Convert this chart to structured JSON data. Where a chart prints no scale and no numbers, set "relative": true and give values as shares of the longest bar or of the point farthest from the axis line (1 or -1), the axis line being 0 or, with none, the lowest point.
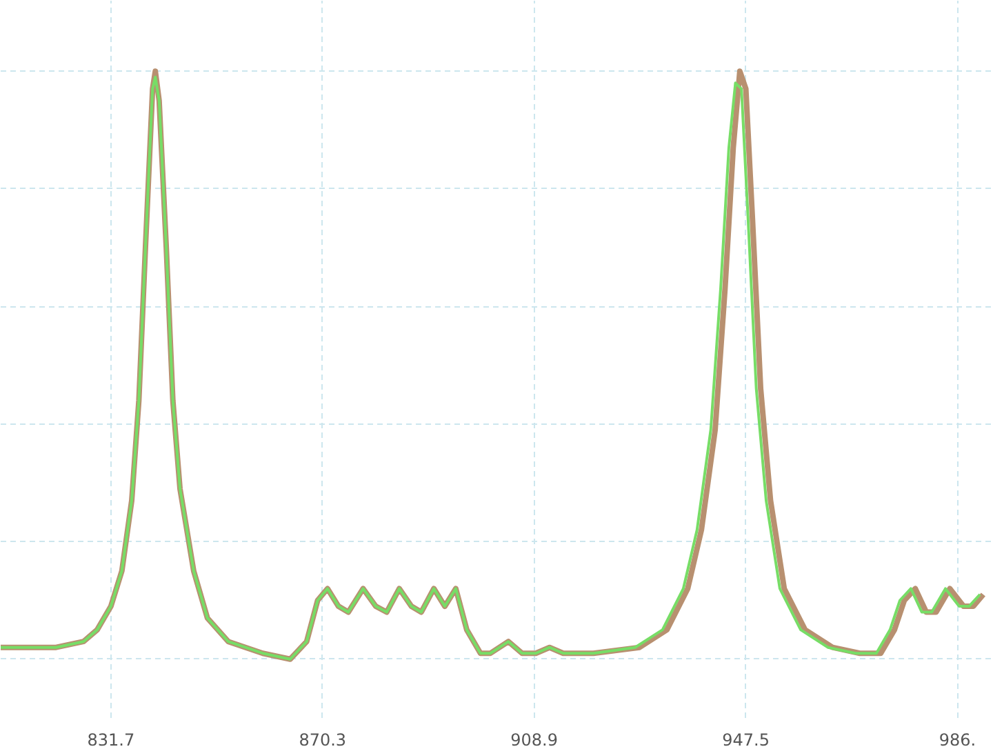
{
  "chart_data": {
    "type": "line",
    "relative": true,
    "grid": true,
    "marker": "none",
    "line_style": "solid",
    "xlim": [
      811.6,
      992.7
    ],
    "xticks": [
      831.7,
      870.3,
      908.9,
      947.5,
      {
        "value": 986.1,
        "label": "986."
      }
    ],
    "series": [
      {
        "color": "#b89070",
        "x": [
          811.6,
          821.7,
          826.7,
          829.2,
          831.7,
          833.7,
          835.5,
          836.8,
          838.0,
          839.3,
          839.8,
          840.5,
          841.8,
          843.0,
          844.3,
          846.8,
          849.3,
          853.1,
          859.4,
          864.4,
          867.4,
          869.4,
          871.2,
          873.2,
          875.0,
          877.7,
          880.0,
          882.0,
          884.3,
          886.5,
          888.3,
          890.6,
          892.6,
          894.6,
          896.6,
          899.1,
          900.9,
          904.2,
          906.7,
          909.2,
          911.7,
          914.2,
          919.7,
          928.1,
          933.1,
          936.9,
          939.4,
          941.9,
          943.7,
          945.2,
          946.4,
          947.5,
          948.7,
          950.2,
          952.0,
          954.5,
          958.3,
          963.3,
          968.3,
          972.1,
          974.6,
          976.4,
          978.4,
          980.4,
          982.2,
          984.7,
          987.2,
          989.0,
          990.8
        ],
        "values": [
          0.02,
          0.02,
          0.03,
          0.05,
          0.09,
          0.15,
          0.27,
          0.44,
          0.7,
          0.97,
          1.0,
          0.95,
          0.7,
          0.44,
          0.29,
          0.15,
          0.07,
          0.03,
          0.01,
          0.0,
          0.03,
          0.1,
          0.12,
          0.09,
          0.08,
          0.12,
          0.09,
          0.08,
          0.12,
          0.09,
          0.08,
          0.12,
          0.09,
          0.12,
          0.05,
          0.01,
          0.01,
          0.03,
          0.01,
          0.01,
          0.02,
          0.01,
          0.01,
          0.02,
          0.05,
          0.12,
          0.22,
          0.39,
          0.63,
          0.87,
          1.0,
          0.97,
          0.75,
          0.46,
          0.27,
          0.12,
          0.05,
          0.02,
          0.01,
          0.01,
          0.05,
          0.1,
          0.12,
          0.08,
          0.08,
          0.12,
          0.09,
          0.09,
          0.11
        ]
      },
      {
        "color": "#77dd66",
        "x": [
          811.6,
          821.7,
          826.7,
          829.2,
          831.7,
          833.7,
          835.5,
          836.8,
          838.0,
          839.3,
          839.8,
          840.5,
          841.8,
          843.0,
          844.3,
          846.8,
          849.3,
          853.1,
          859.4,
          864.4,
          867.4,
          869.4,
          871.2,
          873.2,
          875.0,
          877.7,
          880.0,
          882.0,
          884.3,
          886.5,
          888.3,
          890.6,
          892.6,
          894.6,
          896.6,
          899.1,
          900.9,
          904.2,
          906.7,
          909.2,
          911.7,
          914.2,
          919.7,
          927.3,
          932.3,
          936.1,
          938.6,
          941.1,
          942.9,
          944.4,
          945.6,
          946.7,
          947.9,
          949.4,
          951.2,
          953.7,
          957.5,
          962.5,
          967.5,
          971.3,
          973.8,
          975.6,
          977.6,
          979.6,
          981.4,
          983.9,
          986.4,
          988.2,
          990.2
        ],
        "values": [
          0.02,
          0.02,
          0.03,
          0.05,
          0.09,
          0.15,
          0.27,
          0.44,
          0.7,
          0.97,
          0.99,
          0.95,
          0.7,
          0.44,
          0.29,
          0.15,
          0.07,
          0.03,
          0.01,
          0.0,
          0.03,
          0.1,
          0.12,
          0.09,
          0.08,
          0.12,
          0.09,
          0.08,
          0.12,
          0.09,
          0.08,
          0.12,
          0.09,
          0.12,
          0.05,
          0.01,
          0.01,
          0.03,
          0.01,
          0.01,
          0.02,
          0.01,
          0.01,
          0.02,
          0.05,
          0.12,
          0.22,
          0.39,
          0.63,
          0.87,
          0.98,
          0.97,
          0.75,
          0.46,
          0.27,
          0.12,
          0.05,
          0.02,
          0.01,
          0.01,
          0.05,
          0.1,
          0.12,
          0.08,
          0.08,
          0.12,
          0.09,
          0.09,
          0.11
        ]
      }
    ]
  }
}
